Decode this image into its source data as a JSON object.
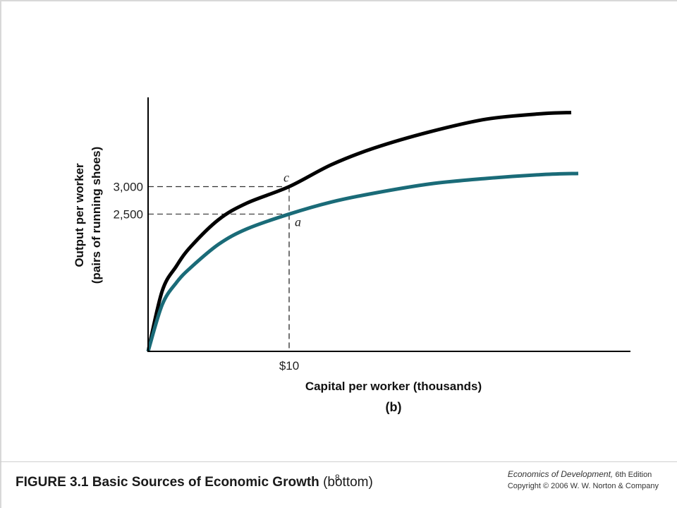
{
  "chart_data": {
    "type": "line",
    "xlabel": "Capital per worker (thousands)",
    "ylabel_line1": "Output per worker",
    "ylabel_line2": "(pairs of running shoes)",
    "panel_label": "(b)",
    "x_ticks": [
      {
        "value": 10,
        "label": "$10"
      }
    ],
    "y_ticks": [
      {
        "value": 2500,
        "label": "2,500"
      },
      {
        "value": 3000,
        "label": "3,000"
      }
    ],
    "xlim": [
      0,
      34
    ],
    "ylim": [
      0,
      4600
    ],
    "grid": false,
    "series": [
      {
        "color": "#000000",
        "x": [
          0,
          1,
          2,
          3,
          5,
          7,
          10,
          13,
          16,
          20,
          24,
          28,
          30
        ],
        "y": [
          0,
          1100,
          1550,
          1900,
          2400,
          2700,
          3000,
          3400,
          3700,
          4000,
          4230,
          4330,
          4350
        ]
      },
      {
        "color": "#1a6b78",
        "x": [
          0,
          1,
          2,
          3,
          5,
          7,
          10,
          13,
          16,
          20,
          24,
          28,
          30.5
        ],
        "y": [
          0,
          850,
          1250,
          1520,
          1950,
          2230,
          2500,
          2720,
          2880,
          3050,
          3150,
          3220,
          3240
        ]
      }
    ],
    "points": [
      {
        "label": "c",
        "x": 10,
        "y": 3000,
        "label_pos": "above"
      },
      {
        "label": "a",
        "x": 10,
        "y": 2500,
        "label_pos": "below-right"
      }
    ],
    "reference_lines": [
      {
        "x": 10,
        "y": 3000
      },
      {
        "x": 10,
        "y": 2500
      }
    ]
  },
  "caption": {
    "figure_number": "FIGURE 3.1",
    "title": "Basic Sources of Economic Growth",
    "subtitle": "(bottom)"
  },
  "slide_number": "8",
  "book": {
    "title": "Economics of Development,",
    "edition": " 6th Edition",
    "copyright": "Copyright © 2006 W. W. Norton & Company"
  }
}
